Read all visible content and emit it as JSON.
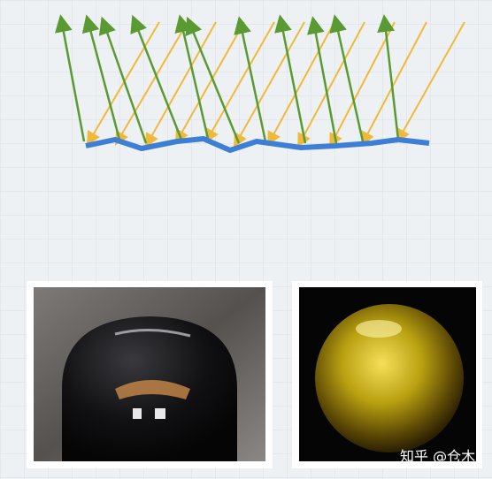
{
  "watermark": "知乎 @仓木"
}
